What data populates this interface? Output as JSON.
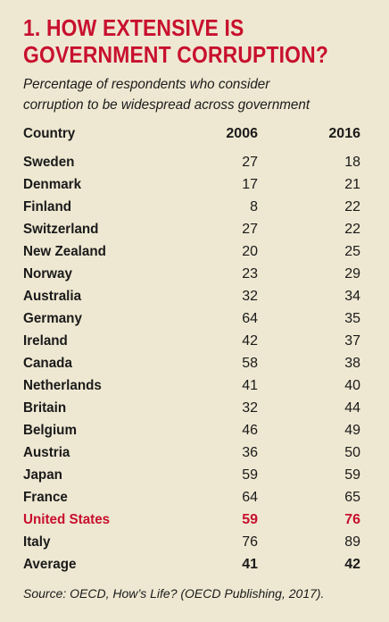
{
  "header": {
    "title": [
      "1. HOW EXTENSIVE IS",
      "GOVERNMENT CORRUPTION?"
    ],
    "subtitle": [
      "Percentage of respondents who consider",
      "corruption to be widespread across government"
    ]
  },
  "table": {
    "columns": [
      "Country",
      "2006",
      "2016"
    ],
    "rows": [
      [
        "Sweden",
        27,
        18
      ],
      [
        "Denmark",
        17,
        21
      ],
      [
        "Finland",
        8,
        22
      ],
      [
        "Switzerland",
        27,
        22
      ],
      [
        "New Zealand",
        20,
        25
      ],
      [
        "Norway",
        23,
        29
      ],
      [
        "Australia",
        32,
        34
      ],
      [
        "Germany",
        64,
        35
      ],
      [
        "Ireland",
        42,
        37
      ],
      [
        "Canada",
        58,
        38
      ],
      [
        "Netherlands",
        41,
        40
      ],
      [
        "Britain",
        32,
        44
      ],
      [
        "Belgium",
        46,
        49
      ],
      [
        "Austria",
        36,
        50
      ],
      [
        "Japan",
        59,
        59
      ],
      [
        "France",
        64,
        65
      ],
      [
        "United States",
        59,
        76
      ],
      [
        "Italy",
        76,
        89
      ],
      [
        "Average",
        41,
        42
      ]
    ]
  },
  "source": "Source: OECD, How’s Life? (OECD Publishing, 2017)."
}
